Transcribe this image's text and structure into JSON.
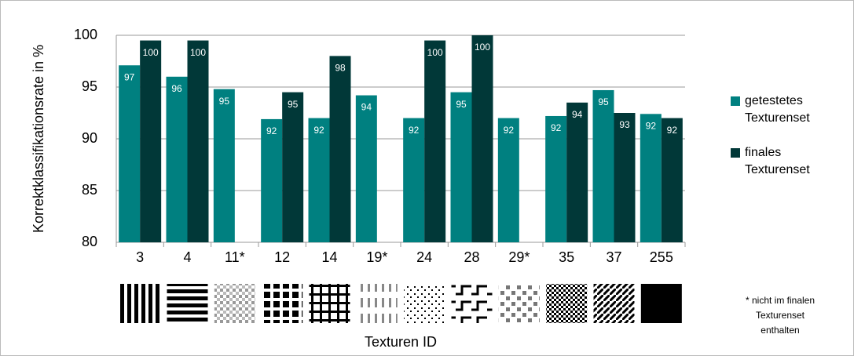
{
  "chart_data": {
    "type": "bar",
    "ylabel": "Korrektklassifikationsrate in %",
    "xlabel": "Texturen ID",
    "categories": [
      "3",
      "4",
      "11*",
      "12",
      "14",
      "19*",
      "24",
      "28",
      "29*",
      "35",
      "37",
      "255"
    ],
    "series": [
      {
        "name": "getestetes Texturenset",
        "color": "#008080",
        "values": [
          97.1,
          96,
          94.8,
          91.9,
          92,
          94.2,
          92,
          94.5,
          92,
          92.2,
          94.7,
          92.4
        ],
        "value_labels": [
          "97",
          "96",
          "95",
          "92",
          "92",
          "94",
          "92",
          "95",
          "92",
          "92",
          "95",
          "92"
        ]
      },
      {
        "name": "finales Texturenset",
        "color": "#013838",
        "values": [
          99.5,
          99.5,
          null,
          94.5,
          98,
          null,
          99.5,
          100,
          null,
          93.5,
          92.5,
          92
        ],
        "value_labels": [
          "100",
          "100",
          null,
          "95",
          "98",
          null,
          "100",
          "100",
          null,
          "94",
          "93",
          "92"
        ]
      }
    ],
    "ylim": [
      80,
      100
    ],
    "yticks": [
      80,
      85,
      90,
      95,
      100
    ],
    "grid": true,
    "annotation": [
      "* nicht im finalen",
      "Texturenset",
      "enthalten"
    ]
  }
}
